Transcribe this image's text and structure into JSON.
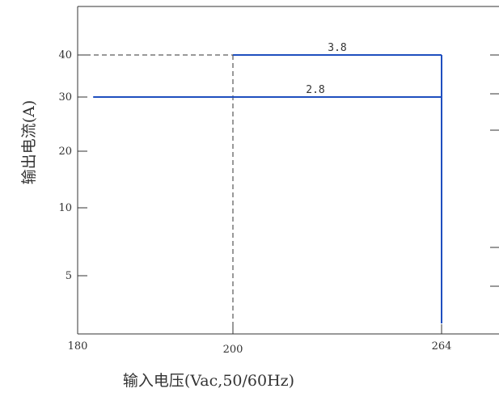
{
  "chart_data": {
    "type": "line",
    "title": "",
    "xlabel": "输入电压(Vac,50/60Hz)",
    "ylabel": "输出电流(A)",
    "x_ticks": [
      {
        "value": 180,
        "label": "180"
      },
      {
        "value": 200,
        "label": "200"
      },
      {
        "value": 264,
        "label": "264"
      }
    ],
    "y_ticks": [
      {
        "value": 5,
        "label": "5"
      },
      {
        "value": 10,
        "label": "10"
      },
      {
        "value": 20,
        "label": "20"
      },
      {
        "value": 30,
        "label": "30"
      },
      {
        "value": 40,
        "label": "40"
      }
    ],
    "series": [
      {
        "points": [
          {
            "x": 200,
            "y": 40
          },
          {
            "x": 264,
            "y": 40
          }
        ],
        "label": "3.8",
        "color": "#1f4fbf"
      },
      {
        "points": [
          {
            "x": 182,
            "y": 30
          },
          {
            "x": 264,
            "y": 30
          }
        ],
        "label": "2.8",
        "color": "#1f4fbf"
      }
    ],
    "reference_lines": [
      {
        "points": [
          {
            "x": 180,
            "y": 40
          },
          {
            "x": 200,
            "y": 40
          }
        ],
        "style": "dashed",
        "color": "#333333"
      },
      {
        "points": [
          {
            "x": 200,
            "y": 40
          },
          {
            "x": 200,
            "y": 0
          }
        ],
        "style": "dashed",
        "color": "#333333"
      }
    ],
    "vertical_drop": {
      "x": 264,
      "from_y": 40,
      "to_y": 0,
      "color": "#1f4fbf"
    },
    "axis_color": "#333333",
    "grid": false
  }
}
